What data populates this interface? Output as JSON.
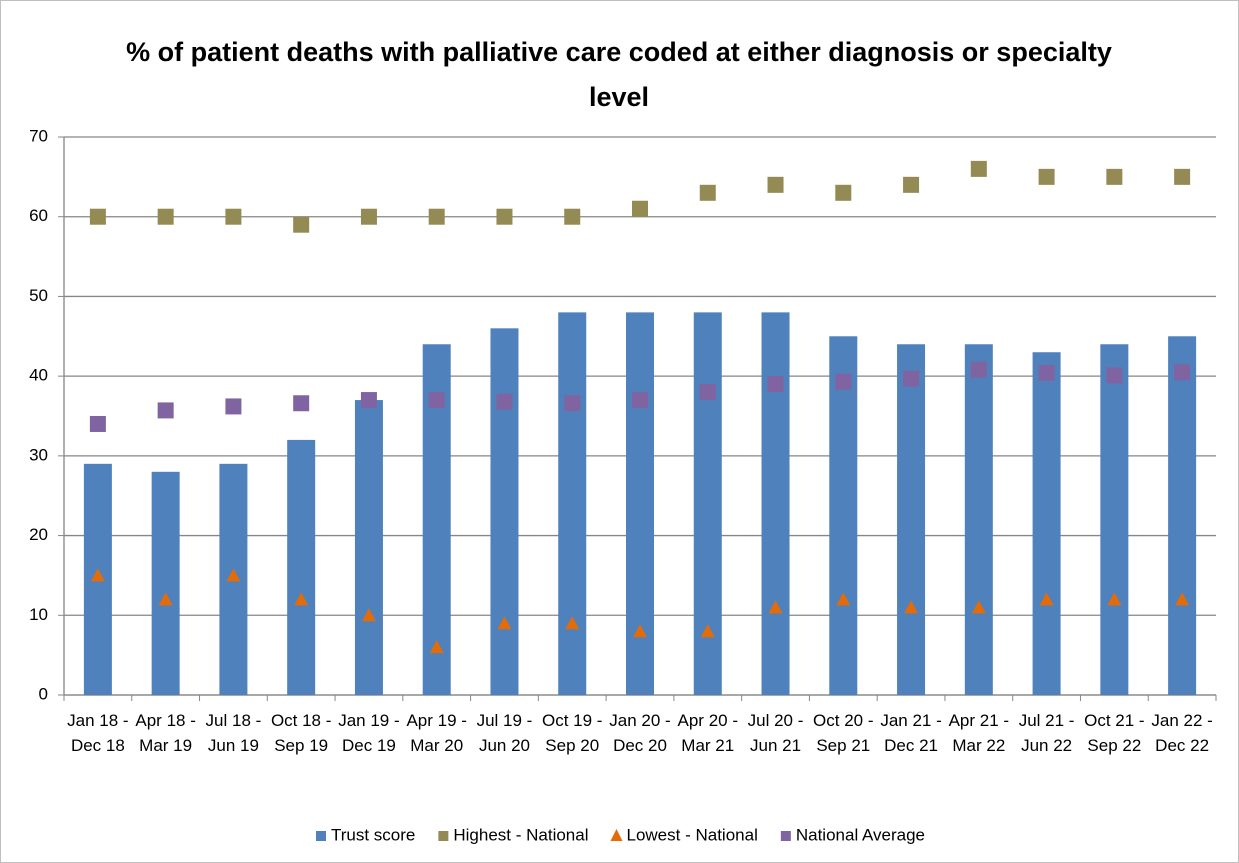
{
  "chart_data": {
    "type": "bar",
    "title": "% of patient deaths with palliative care coded at either diagnosis or specialty level",
    "categories": [
      "Jan 18 - Dec 18",
      "Apr 18 - Mar 19",
      "Jul 18 - Jun 19",
      "Oct 18 - Sep 19",
      "Jan 19 - Dec 19",
      "Apr 19 - Mar 20",
      "Jul 19 - Jun 20",
      "Oct 19 - Sep 20",
      "Jan 20 - Dec 20",
      "Apr 20 - Mar 21",
      "Jul 20 - Jun 21",
      "Oct 20 - Sep 21",
      "Jan 21 - Dec 21",
      "Apr 21 - Mar 22",
      "Jul 21 - Jun 22",
      "Oct 21 - Sep 22",
      "Jan 22 - Dec 22"
    ],
    "series": [
      {
        "name": "Trust score",
        "color": "#4f81bd",
        "marker": "bar",
        "values": [
          29,
          28,
          29,
          32,
          37,
          44,
          46,
          48,
          48,
          48,
          48,
          45,
          44,
          44,
          43,
          44,
          45
        ]
      },
      {
        "name": "Highest - National",
        "color": "#948a54",
        "marker": "square",
        "values": [
          60,
          60,
          60,
          59,
          60,
          60,
          60,
          60,
          61,
          63,
          64,
          63,
          64,
          66,
          65,
          65,
          65
        ]
      },
      {
        "name": "Lowest - National",
        "color": "#e36c09",
        "marker": "triangle",
        "values": [
          15,
          12,
          15,
          12,
          10,
          6,
          9,
          9,
          8,
          8,
          11,
          12,
          11,
          11,
          12,
          12,
          12
        ]
      },
      {
        "name": "National Average",
        "color": "#8064a2",
        "marker": "square",
        "values": [
          34,
          35.7,
          36.2,
          36.6,
          37,
          37,
          36.8,
          36.6,
          37,
          38,
          39,
          39.3,
          39.7,
          40.8,
          40.4,
          40.1,
          40.5
        ]
      }
    ],
    "ylim": [
      0,
      70
    ],
    "yticks": [
      0,
      10,
      20,
      30,
      40,
      50,
      60,
      70
    ],
    "grid": true,
    "legend": "bottom"
  }
}
